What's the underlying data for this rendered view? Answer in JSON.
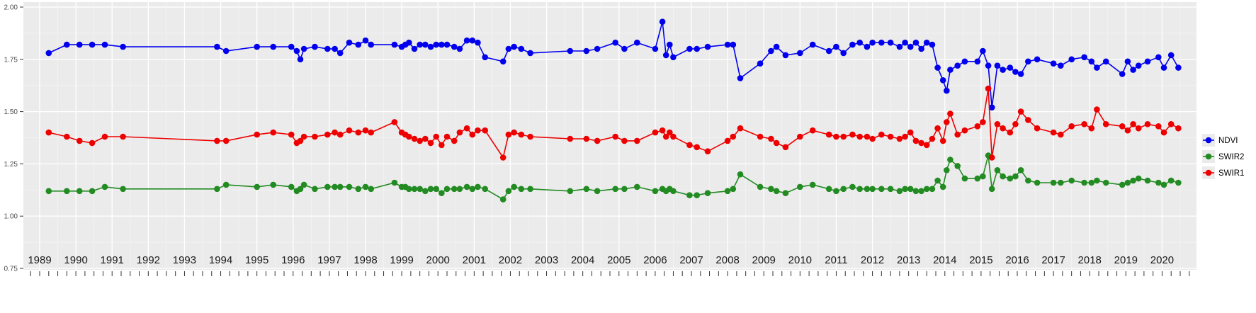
{
  "chart_data": {
    "type": "line",
    "title": "",
    "xlabel": "",
    "ylabel": "",
    "x": [
      1989.25,
      1989.75,
      1990.1,
      1990.45,
      1990.8,
      1991.3,
      1993.9,
      1994.15,
      1995.0,
      1995.45,
      1995.95,
      1996.1,
      1996.2,
      1996.3,
      1996.6,
      1996.95,
      1997.15,
      1997.3,
      1997.55,
      1997.8,
      1998.0,
      1998.15,
      1998.8,
      1999.0,
      1999.1,
      1999.2,
      1999.35,
      1999.5,
      1999.65,
      1999.8,
      1999.95,
      2000.1,
      2000.25,
      2000.45,
      2000.6,
      2000.8,
      2000.95,
      2001.1,
      2001.3,
      2001.8,
      2001.95,
      2002.1,
      2002.3,
      2002.55,
      2003.65,
      2004.1,
      2004.4,
      2004.9,
      2005.15,
      2005.5,
      2006.0,
      2006.2,
      2006.3,
      2006.4,
      2006.5,
      2006.95,
      2007.15,
      2007.45,
      2008.0,
      2008.15,
      2008.35,
      2008.9,
      2009.2,
      2009.35,
      2009.6,
      2010.0,
      2010.35,
      2010.8,
      2011.0,
      2011.2,
      2011.45,
      2011.65,
      2011.85,
      2012.0,
      2012.25,
      2012.5,
      2012.75,
      2012.9,
      2013.05,
      2013.2,
      2013.35,
      2013.5,
      2013.65,
      2013.8,
      2013.95,
      2014.05,
      2014.15,
      2014.35,
      2014.55,
      2014.9,
      2015.05,
      2015.2,
      2015.3,
      2015.45,
      2015.6,
      2015.8,
      2015.95,
      2016.1,
      2016.3,
      2016.55,
      2017.0,
      2017.2,
      2017.5,
      2017.85,
      2018.05,
      2018.2,
      2018.45,
      2018.9,
      2019.05,
      2019.2,
      2019.35,
      2019.6,
      2019.9,
      2020.05,
      2020.25,
      2020.45
    ],
    "series": [
      {
        "name": "NDVI",
        "color": "#0000ee",
        "values": [
          1.78,
          1.82,
          1.82,
          1.82,
          1.82,
          1.81,
          1.81,
          1.79,
          1.81,
          1.81,
          1.81,
          1.79,
          1.75,
          1.8,
          1.81,
          1.8,
          1.8,
          1.78,
          1.83,
          1.82,
          1.84,
          1.82,
          1.82,
          1.81,
          1.82,
          1.83,
          1.8,
          1.82,
          1.82,
          1.81,
          1.82,
          1.82,
          1.82,
          1.81,
          1.8,
          1.84,
          1.84,
          1.83,
          1.76,
          1.74,
          1.8,
          1.81,
          1.8,
          1.78,
          1.79,
          1.79,
          1.8,
          1.83,
          1.8,
          1.83,
          1.8,
          1.93,
          1.77,
          1.82,
          1.76,
          1.8,
          1.8,
          1.81,
          1.82,
          1.82,
          1.66,
          1.73,
          1.79,
          1.81,
          1.77,
          1.78,
          1.82,
          1.79,
          1.81,
          1.78,
          1.82,
          1.83,
          1.81,
          1.83,
          1.83,
          1.83,
          1.81,
          1.83,
          1.81,
          1.83,
          1.8,
          1.83,
          1.82,
          1.71,
          1.65,
          1.6,
          1.7,
          1.72,
          1.74,
          1.74,
          1.79,
          1.72,
          1.52,
          1.72,
          1.7,
          1.71,
          1.69,
          1.68,
          1.74,
          1.75,
          1.73,
          1.72,
          1.75,
          1.76,
          1.74,
          1.71,
          1.74,
          1.68,
          1.74,
          1.7,
          1.72,
          1.74,
          1.76,
          1.71,
          1.77,
          1.71
        ]
      },
      {
        "name": "SWIR2",
        "color": "#228b22",
        "values": [
          1.12,
          1.12,
          1.12,
          1.12,
          1.14,
          1.13,
          1.13,
          1.15,
          1.14,
          1.15,
          1.14,
          1.12,
          1.13,
          1.15,
          1.13,
          1.14,
          1.14,
          1.14,
          1.14,
          1.13,
          1.14,
          1.13,
          1.16,
          1.14,
          1.14,
          1.13,
          1.13,
          1.13,
          1.12,
          1.13,
          1.13,
          1.11,
          1.13,
          1.13,
          1.13,
          1.14,
          1.13,
          1.14,
          1.13,
          1.08,
          1.12,
          1.14,
          1.13,
          1.13,
          1.12,
          1.13,
          1.12,
          1.13,
          1.13,
          1.14,
          1.12,
          1.13,
          1.12,
          1.13,
          1.12,
          1.1,
          1.1,
          1.11,
          1.12,
          1.13,
          1.2,
          1.14,
          1.13,
          1.12,
          1.11,
          1.14,
          1.15,
          1.13,
          1.12,
          1.13,
          1.14,
          1.13,
          1.13,
          1.13,
          1.13,
          1.13,
          1.12,
          1.13,
          1.13,
          1.12,
          1.12,
          1.13,
          1.13,
          1.17,
          1.14,
          1.22,
          1.27,
          1.24,
          1.18,
          1.18,
          1.19,
          1.29,
          1.13,
          1.22,
          1.19,
          1.18,
          1.19,
          1.22,
          1.17,
          1.16,
          1.16,
          1.16,
          1.17,
          1.16,
          1.16,
          1.17,
          1.16,
          1.15,
          1.16,
          1.17,
          1.18,
          1.17,
          1.16,
          1.15,
          1.17,
          1.16
        ]
      },
      {
        "name": "SWIR1",
        "color": "#ee0000",
        "values": [
          1.4,
          1.38,
          1.36,
          1.35,
          1.38,
          1.38,
          1.36,
          1.36,
          1.39,
          1.4,
          1.39,
          1.35,
          1.36,
          1.38,
          1.38,
          1.39,
          1.4,
          1.39,
          1.41,
          1.4,
          1.41,
          1.4,
          1.45,
          1.4,
          1.39,
          1.38,
          1.37,
          1.36,
          1.37,
          1.35,
          1.38,
          1.34,
          1.38,
          1.36,
          1.4,
          1.42,
          1.39,
          1.41,
          1.41,
          1.28,
          1.39,
          1.4,
          1.39,
          1.38,
          1.37,
          1.37,
          1.36,
          1.38,
          1.36,
          1.36,
          1.4,
          1.41,
          1.38,
          1.4,
          1.38,
          1.34,
          1.33,
          1.31,
          1.36,
          1.38,
          1.42,
          1.38,
          1.37,
          1.35,
          1.33,
          1.38,
          1.41,
          1.39,
          1.38,
          1.38,
          1.39,
          1.38,
          1.38,
          1.37,
          1.39,
          1.38,
          1.37,
          1.38,
          1.4,
          1.36,
          1.35,
          1.34,
          1.37,
          1.42,
          1.36,
          1.45,
          1.49,
          1.39,
          1.41,
          1.43,
          1.45,
          1.61,
          1.28,
          1.44,
          1.42,
          1.4,
          1.44,
          1.5,
          1.46,
          1.42,
          1.4,
          1.39,
          1.43,
          1.44,
          1.42,
          1.51,
          1.44,
          1.43,
          1.41,
          1.44,
          1.42,
          1.44,
          1.43,
          1.4,
          1.44,
          1.42
        ]
      }
    ],
    "x_axis": {
      "ticks": [
        1989,
        1990,
        1991,
        1992,
        1993,
        1994,
        1995,
        1996,
        1997,
        1998,
        1999,
        2000,
        2001,
        2002,
        2003,
        2004,
        2005,
        2006,
        2007,
        2008,
        2009,
        2010,
        2011,
        2012,
        2013,
        2014,
        2015,
        2016,
        2017,
        2018,
        2019,
        2020
      ],
      "range": [
        1988.55,
        2020.95
      ],
      "minor_tick_step": 0.25
    },
    "y_axis": {
      "ticks": [
        2.0,
        1.75,
        1.5,
        1.25,
        1.0,
        0.75
      ],
      "tick_labels": [
        "2.00",
        "1.75",
        "1.50",
        "1.25",
        "1.00",
        "0.75"
      ],
      "range": [
        0.72,
        2.02
      ]
    },
    "legend": {
      "position": "right",
      "entries": [
        "NDVI",
        "SWIR2",
        "SWIR1"
      ]
    },
    "grid": true,
    "panel_background": "#ebebeb",
    "grid_major_color": "#ffffff",
    "grid_minor_color": "#f5f5f5",
    "axis_tick_color": "#333333"
  }
}
